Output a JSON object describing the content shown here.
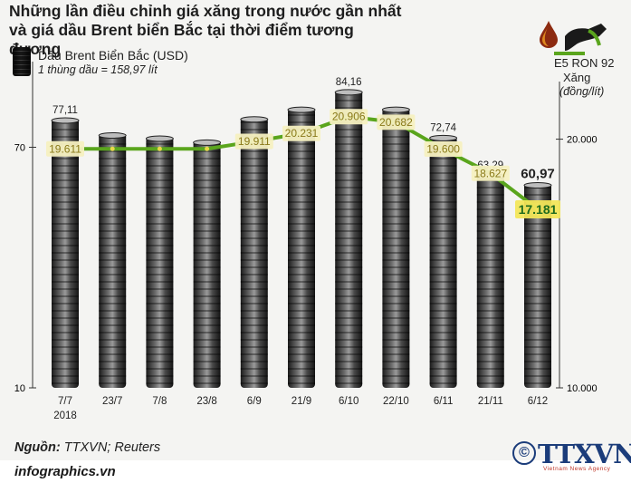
{
  "title": "Những lần điều chỉnh giá xăng trong nước gần nhất và giá dầu Brent biển Bắc tại thời điểm tương đương",
  "legend_oil": {
    "name": "Dầu Brent Biển Bắc (USD)",
    "note": "1 thùng dầu = 158,97 lít",
    "icon": "barrel-icon"
  },
  "legend_fuel": {
    "name": "E5 RON 92",
    "fuel": "Xăng",
    "unit": "(đồng/lít)",
    "icons": [
      "oil-drop-icon",
      "fuel-pump-icon"
    ]
  },
  "source": {
    "label": "Nguồn:",
    "value": "TTXVN; Reuters"
  },
  "site": "infographics.vn",
  "logo": {
    "copyright": "©",
    "name": "TTXVN",
    "sub": "Vietnam News Agency"
  },
  "colors": {
    "line": "#5aa51d",
    "label_bg": "#f6f0c0",
    "label_text": "#8a7a1a",
    "highlight_bg": "#f3e65a",
    "barrel": "#3a3a3a"
  },
  "chart_data": {
    "type": "bar+line",
    "categories": [
      "7/7",
      "23/7",
      "7/8",
      "23/8",
      "6/9",
      "21/9",
      "6/10",
      "22/10",
      "6/11",
      "21/11",
      "6/12"
    ],
    "category_year": "2018",
    "series": [
      {
        "name": "Dầu Brent Biển Bắc (USD)",
        "type": "bar",
        "values": [
          77.11,
          73.4,
          72.6,
          71.6,
          77.4,
          79.8,
          84.16,
          79.8,
          72.74,
          63.29,
          60.97
        ],
        "labels": [
          "77,11",
          "",
          "",
          "",
          "",
          "",
          "84,16",
          "",
          "72,74",
          "63,29",
          "60,97"
        ]
      },
      {
        "name": "E5 RON 92",
        "type": "line",
        "values": [
          19611,
          19611,
          19611,
          19611,
          19911,
          20231,
          20906,
          20682,
          19600,
          18627,
          17181
        ],
        "labels": [
          "19.611",
          "",
          "",
          "",
          "19.911",
          "20.231",
          "20.906",
          "20.682",
          "19.600",
          "18.627",
          "17.181"
        ]
      }
    ],
    "y_left": {
      "ticks": [
        "10",
        "70"
      ],
      "range": [
        10,
        90
      ]
    },
    "y_right": {
      "ticks": [
        "10.000",
        "20.000"
      ],
      "range": [
        10000,
        22900
      ]
    }
  }
}
